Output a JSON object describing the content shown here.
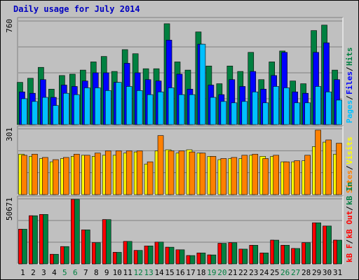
{
  "title": "Daily usage for July 2014",
  "colors": {
    "hits": "#008040",
    "files": "#0000ff",
    "pages": "#00c0ff",
    "visits": "#ffff00",
    "sites": "#ff8000",
    "kbin": "#008040",
    "kbout": "#ff0000",
    "weekend_label": "#008040",
    "weekday_label": "#000000",
    "panel_bg": "#c0c0c0"
  },
  "chart_data": [
    {
      "type": "bar",
      "panel": "hits-files-pages",
      "ymax_label": "760",
      "ylim": [
        0,
        760
      ],
      "x": [
        "1",
        "2",
        "3",
        "4",
        "5",
        "6",
        "7",
        "8",
        "9",
        "10",
        "11",
        "12",
        "13",
        "14",
        "15",
        "16",
        "17",
        "18",
        "19",
        "20",
        "21",
        "22",
        "23",
        "24",
        "25",
        "26",
        "27",
        "28",
        "29",
        "30",
        "31"
      ],
      "weekend_days": [
        "5",
        "6",
        "12",
        "13",
        "19",
        "20",
        "26",
        "27"
      ],
      "legend": [
        {
          "label": "Pages",
          "color": "#00c0ff"
        },
        {
          "label": "Files",
          "color": "#0000ff"
        },
        {
          "label": "Hits",
          "color": "#008040"
        }
      ],
      "series": [
        {
          "name": "Hits",
          "values": [
            310,
            340,
            420,
            260,
            360,
            370,
            400,
            460,
            500,
            390,
            550,
            520,
            410,
            410,
            740,
            460,
            400,
            680,
            430,
            300,
            430,
            390,
            530,
            330,
            460,
            540,
            320,
            300,
            690,
            730,
            400
          ]
        },
        {
          "name": "Files",
          "values": [
            240,
            230,
            330,
            200,
            290,
            280,
            320,
            380,
            380,
            310,
            450,
            380,
            330,
            320,
            620,
            370,
            260,
            590,
            290,
            220,
            330,
            280,
            390,
            260,
            360,
            530,
            240,
            230,
            530,
            600,
            330
          ]
        },
        {
          "name": "Pages",
          "values": [
            190,
            170,
            200,
            140,
            230,
            220,
            270,
            270,
            250,
            310,
            280,
            250,
            220,
            240,
            270,
            220,
            220,
            590,
            200,
            170,
            160,
            170,
            240,
            160,
            280,
            270,
            160,
            160,
            280,
            240,
            180
          ]
        }
      ]
    },
    {
      "type": "bar",
      "panel": "visits-sites",
      "ymax_label": "301",
      "ylim": [
        0,
        301
      ],
      "x": [
        "1",
        "2",
        "3",
        "4",
        "5",
        "6",
        "7",
        "8",
        "9",
        "10",
        "11",
        "12",
        "13",
        "14",
        "15",
        "16",
        "17",
        "18",
        "19",
        "20",
        "21",
        "22",
        "23",
        "24",
        "25",
        "26",
        "27",
        "28",
        "29",
        "30",
        "31"
      ],
      "legend": [
        {
          "label": "Sites",
          "color": "#ff8000"
        },
        {
          "label": "Visits",
          "color": "#ffff00"
        }
      ],
      "series": [
        {
          "name": "Visits",
          "values": [
            185,
            175,
            165,
            150,
            165,
            175,
            180,
            175,
            180,
            180,
            190,
            195,
            140,
            200,
            205,
            190,
            205,
            190,
            175,
            160,
            165,
            165,
            180,
            175,
            175,
            150,
            150,
            155,
            220,
            240,
            185
          ]
        },
        {
          "name": "Sites",
          "values": [
            180,
            185,
            170,
            160,
            170,
            185,
            180,
            190,
            200,
            200,
            200,
            200,
            150,
            270,
            200,
            200,
            195,
            190,
            175,
            165,
            170,
            180,
            185,
            165,
            180,
            150,
            155,
            180,
            295,
            250,
            235
          ]
        }
      ]
    },
    {
      "type": "bar",
      "panel": "kbin-kbout",
      "ymax_label": "50671",
      "ylim": [
        0,
        50671
      ],
      "x": [
        "1",
        "2",
        "3",
        "4",
        "5",
        "6",
        "7",
        "8",
        "9",
        "10",
        "11",
        "12",
        "13",
        "14",
        "15",
        "16",
        "17",
        "18",
        "19",
        "20",
        "21",
        "22",
        "23",
        "24",
        "25",
        "26",
        "27",
        "28",
        "29",
        "30",
        "31"
      ],
      "legend": [
        {
          "label": "kB F",
          "color": "#ff0000"
        },
        {
          "label": "kB Out",
          "color": "#ff0000"
        },
        {
          "label": "kB In",
          "color": "#008040"
        }
      ],
      "series": [
        {
          "name": "kB In",
          "values": [
            27000,
            37500,
            38500,
            7500,
            13500,
            50200,
            26500,
            16500,
            34500,
            9000,
            17500,
            10500,
            14000,
            17000,
            13000,
            11000,
            6500,
            8500,
            7000,
            16000,
            16500,
            11500,
            14500,
            8500,
            18500,
            14500,
            12000,
            16500,
            32000,
            29500,
            18500
          ]
        },
        {
          "name": "kB Out",
          "values": [
            27000,
            37500,
            38500,
            7500,
            13500,
            50200,
            26500,
            16500,
            34500,
            9000,
            17500,
            10500,
            14000,
            17000,
            13000,
            11000,
            6500,
            8500,
            7000,
            16000,
            16500,
            11500,
            14500,
            8500,
            18500,
            14500,
            12000,
            16500,
            32000,
            29500,
            18500
          ]
        }
      ]
    }
  ]
}
